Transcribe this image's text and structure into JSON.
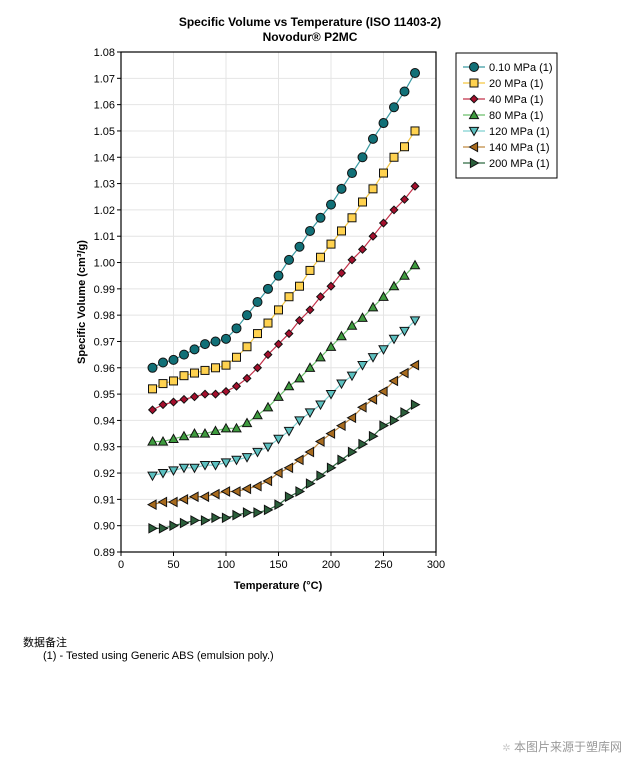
{
  "chart_data": {
    "type": "line",
    "title": "Specific Volume vs Temperature (ISO 11403-2)",
    "subtitle": "Novodur® P2MC",
    "xlabel": "Temperature (°C)",
    "ylabel": "Specific Volume (cm³/g)",
    "xlim": [
      0,
      300
    ],
    "ylim": [
      0.89,
      1.08
    ],
    "xticks": [
      0,
      50,
      100,
      150,
      200,
      250,
      300
    ],
    "yticks": [
      0.89,
      0.9,
      0.91,
      0.92,
      0.93,
      0.94,
      0.95,
      0.96,
      0.97,
      0.98,
      0.99,
      1.0,
      1.01,
      1.02,
      1.03,
      1.04,
      1.05,
      1.06,
      1.07,
      1.08
    ],
    "grid": true,
    "legend_position": "right-outside-top",
    "x": [
      30,
      40,
      50,
      60,
      70,
      80,
      90,
      100,
      110,
      120,
      130,
      140,
      150,
      160,
      170,
      180,
      190,
      200,
      210,
      220,
      230,
      240,
      250,
      260,
      270,
      280
    ],
    "series": [
      {
        "name": "0.10 MPa (1)",
        "marker": "circle",
        "color": "#117077",
        "line": "#3a9aa2",
        "values": [
          0.96,
          0.962,
          0.963,
          0.965,
          0.967,
          0.969,
          0.97,
          0.971,
          0.975,
          0.98,
          0.985,
          0.99,
          0.995,
          1.001,
          1.006,
          1.012,
          1.017,
          1.022,
          1.028,
          1.034,
          1.04,
          1.047,
          1.053,
          1.059,
          1.065,
          1.072
        ]
      },
      {
        "name": "20 MPa (1)",
        "marker": "square",
        "color": "#FFD24F",
        "line": "#f5c842",
        "values": [
          0.952,
          0.954,
          0.955,
          0.957,
          0.958,
          0.959,
          0.96,
          0.961,
          0.964,
          0.968,
          0.973,
          0.977,
          0.982,
          0.987,
          0.991,
          0.997,
          1.002,
          1.007,
          1.012,
          1.017,
          1.023,
          1.028,
          1.034,
          1.04,
          1.044,
          1.05
        ]
      },
      {
        "name": "40 MPa (1)",
        "marker": "diamond",
        "color": "#A50F2D",
        "line": "#c23049",
        "values": [
          0.944,
          0.946,
          0.947,
          0.948,
          0.949,
          0.95,
          0.95,
          0.951,
          0.953,
          0.956,
          0.96,
          0.965,
          0.969,
          0.973,
          0.978,
          0.982,
          0.987,
          0.991,
          0.996,
          1.001,
          1.005,
          1.01,
          1.015,
          1.02,
          1.024,
          1.029
        ]
      },
      {
        "name": "80 MPa (1)",
        "marker": "triangle-up",
        "color": "#3E9B3E",
        "line": "#6cbf6c",
        "values": [
          0.932,
          0.932,
          0.933,
          0.934,
          0.935,
          0.935,
          0.936,
          0.937,
          0.937,
          0.939,
          0.942,
          0.945,
          0.949,
          0.953,
          0.956,
          0.96,
          0.964,
          0.968,
          0.972,
          0.976,
          0.979,
          0.983,
          0.987,
          0.991,
          0.995,
          0.999
        ]
      },
      {
        "name": "120 MPa (1)",
        "marker": "triangle-down",
        "color": "#5BC0C0",
        "line": "#7fd0d0",
        "values": [
          0.919,
          0.92,
          0.921,
          0.922,
          0.922,
          0.923,
          0.923,
          0.924,
          0.925,
          0.926,
          0.928,
          0.93,
          0.933,
          0.936,
          0.94,
          0.943,
          0.946,
          0.95,
          0.954,
          0.957,
          0.961,
          0.964,
          0.967,
          0.971,
          0.974,
          0.978
        ]
      },
      {
        "name": "140 MPa (1)",
        "marker": "triangle-left",
        "color": "#A86B1E",
        "line": "#c08a40",
        "values": [
          0.908,
          0.909,
          0.909,
          0.91,
          0.911,
          0.911,
          0.912,
          0.913,
          0.913,
          0.914,
          0.915,
          0.917,
          0.92,
          0.922,
          0.925,
          0.928,
          0.932,
          0.935,
          0.938,
          0.941,
          0.945,
          0.948,
          0.951,
          0.955,
          0.958,
          0.961
        ]
      },
      {
        "name": "200 MPa (1)",
        "marker": "triangle-right",
        "color": "#2A5E3A",
        "line": "#2f6a42",
        "values": [
          0.899,
          0.899,
          0.9,
          0.901,
          0.902,
          0.902,
          0.903,
          0.903,
          0.904,
          0.905,
          0.905,
          0.906,
          0.908,
          0.911,
          0.913,
          0.916,
          0.919,
          0.922,
          0.925,
          0.928,
          0.931,
          0.934,
          0.938,
          0.94,
          0.943,
          0.946
        ]
      }
    ]
  },
  "notes": {
    "heading": "数据备注",
    "items": [
      "(1) - Tested using Generic ABS (emulsion poly.)"
    ]
  },
  "source": "本图片来源于塑库网",
  "source_icon": "star-icon"
}
